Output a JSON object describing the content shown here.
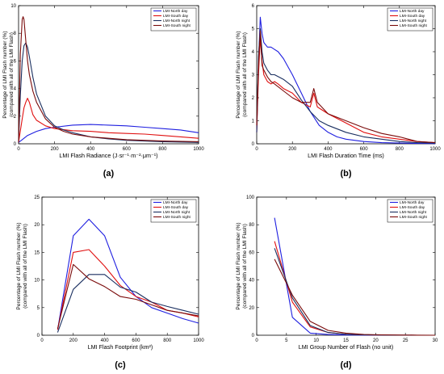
{
  "chart_data": [
    {
      "type": "line",
      "panel_label": "(a)",
      "xlabel": "LMI Flash Radiance (J·sr⁻¹·m⁻²·μm⁻¹)",
      "ylabel": [
        "Percentage of LMI Flash number (%)",
        "(compared with all of the LMI Flash)"
      ],
      "xlim": [
        0,
        1000
      ],
      "ylim": [
        0,
        10
      ],
      "xticks": [
        0,
        200,
        400,
        600,
        800,
        1000
      ],
      "yticks": [
        0,
        2,
        4,
        6,
        8,
        10
      ],
      "legend": "top-right",
      "series": [
        {
          "name": "LMI-North day",
          "color": "#1f1fe0",
          "x": [
            0,
            20,
            50,
            100,
            150,
            200,
            300,
            400,
            500,
            600,
            700,
            800,
            900,
            1000
          ],
          "y": [
            0.1,
            0.3,
            0.6,
            0.9,
            1.1,
            1.2,
            1.35,
            1.4,
            1.35,
            1.3,
            1.2,
            1.1,
            1.0,
            0.8
          ]
        },
        {
          "name": "LMI-South day",
          "color": "#e01010",
          "x": [
            0,
            20,
            30,
            40,
            50,
            60,
            80,
            100,
            150,
            200,
            300,
            400,
            500,
            600,
            700,
            800,
            900,
            1000
          ],
          "y": [
            0.1,
            1.8,
            2.6,
            3.0,
            3.3,
            3.0,
            2.1,
            1.7,
            1.3,
            1.1,
            0.95,
            0.9,
            0.8,
            0.75,
            0.7,
            0.6,
            0.5,
            0.4
          ]
        },
        {
          "name": "LMI-North night",
          "color": "#1a2f60",
          "x": [
            0,
            10,
            20,
            30,
            40,
            50,
            60,
            80,
            100,
            150,
            200,
            250,
            300,
            400,
            500,
            600,
            800,
            1000
          ],
          "y": [
            0.1,
            3.5,
            6.0,
            7.1,
            7.3,
            7.0,
            6.3,
            4.8,
            3.6,
            2.0,
            1.3,
            1.0,
            0.8,
            0.5,
            0.35,
            0.25,
            0.15,
            0.1
          ]
        },
        {
          "name": "LMI-South night",
          "color": "#7a0a0a",
          "x": [
            0,
            10,
            20,
            25,
            30,
            40,
            50,
            60,
            80,
            100,
            150,
            200,
            250,
            300,
            400,
            500,
            600,
            800,
            1000
          ],
          "y": [
            0.1,
            6.5,
            9.0,
            9.2,
            9.0,
            7.5,
            6.0,
            5.0,
            3.8,
            3.0,
            1.8,
            1.2,
            0.9,
            0.7,
            0.5,
            0.4,
            0.3,
            0.2,
            0.15
          ]
        }
      ]
    },
    {
      "type": "line",
      "panel_label": "(b)",
      "xlabel": "LMI Flash Duration Time (ms)",
      "ylabel": [
        "Percentage of LMI Flash number (%)",
        "(compared with all of the LMI Flash)"
      ],
      "xlim": [
        0,
        1000
      ],
      "ylim": [
        0,
        6
      ],
      "xticks": [
        0,
        200,
        400,
        600,
        800,
        1000
      ],
      "yticks": [
        0,
        1,
        2,
        3,
        4,
        5,
        6
      ],
      "legend": "top-right",
      "series": [
        {
          "name": "LMI-North day",
          "color": "#1f1fe0",
          "x": [
            0,
            10,
            20,
            30,
            40,
            60,
            80,
            100,
            120,
            150,
            200,
            250,
            300,
            350,
            400,
            450,
            500,
            600,
            700,
            800,
            900,
            1000
          ],
          "y": [
            0.5,
            3.5,
            5.5,
            4.8,
            4.4,
            4.2,
            4.2,
            4.1,
            4.0,
            3.7,
            3.0,
            2.2,
            1.4,
            0.8,
            0.5,
            0.3,
            0.2,
            0.1,
            0.05,
            0.03,
            0.02,
            0.01
          ]
        },
        {
          "name": "LMI-South day",
          "color": "#e01010",
          "x": [
            0,
            10,
            20,
            30,
            40,
            60,
            80,
            100,
            120,
            150,
            200,
            250,
            300,
            320,
            340,
            400,
            500,
            600,
            700,
            800,
            900,
            1000
          ],
          "y": [
            0.5,
            3.0,
            4.6,
            3.6,
            3.0,
            2.7,
            2.6,
            2.7,
            2.6,
            2.4,
            2.2,
            1.8,
            1.6,
            2.2,
            1.6,
            1.3,
            0.9,
            0.5,
            0.3,
            0.2,
            0.1,
            0.05
          ]
        },
        {
          "name": "LMI-North night",
          "color": "#1a2f60",
          "x": [
            0,
            10,
            20,
            30,
            40,
            60,
            80,
            100,
            150,
            200,
            250,
            300,
            350,
            400,
            500,
            600,
            700,
            800,
            900,
            1000
          ],
          "y": [
            0.5,
            3.8,
            5.0,
            4.0,
            3.5,
            3.2,
            3.0,
            3.0,
            2.8,
            2.5,
            1.9,
            1.4,
            1.0,
            0.8,
            0.5,
            0.3,
            0.2,
            0.1,
            0.05,
            0.03
          ]
        },
        {
          "name": "LMI-South night",
          "color": "#7a0a0a",
          "x": [
            0,
            10,
            20,
            30,
            40,
            60,
            80,
            100,
            150,
            200,
            250,
            300,
            320,
            340,
            400,
            500,
            600,
            700,
            800,
            850,
            900,
            1000
          ],
          "y": [
            0.8,
            3.4,
            4.9,
            3.4,
            3.2,
            2.9,
            2.7,
            2.6,
            2.3,
            2.0,
            1.8,
            1.8,
            2.4,
            1.8,
            1.3,
            1.0,
            0.7,
            0.45,
            0.3,
            0.2,
            0.1,
            0.05
          ]
        }
      ]
    },
    {
      "type": "line",
      "panel_label": "(c)",
      "xlabel": "LMI Flash Footprint (km²)",
      "ylabel": [
        "Percentage of LMI Flash number (%)",
        "(compared with all of the LMI Flash)"
      ],
      "xlim": [
        0,
        1000
      ],
      "ylim": [
        0,
        25
      ],
      "xticks": [
        0,
        200,
        400,
        600,
        800,
        1000
      ],
      "yticks": [
        0,
        5,
        10,
        15,
        20,
        25
      ],
      "legend": "top-right",
      "series": [
        {
          "name": "LMI-North day",
          "color": "#1f1fe0",
          "x": [
            100,
            200,
            300,
            400,
            500,
            600,
            700,
            800,
            900,
            1000
          ],
          "y": [
            1.0,
            18.0,
            21.0,
            18.0,
            10.5,
            7.0,
            5.0,
            4.0,
            3.0,
            2.2
          ]
        },
        {
          "name": "LMI-South day",
          "color": "#e01010",
          "x": [
            100,
            200,
            300,
            400,
            500,
            600,
            700,
            800,
            900,
            1000
          ],
          "y": [
            1.0,
            15.0,
            15.5,
            12.5,
            9.0,
            7.0,
            6.0,
            4.5,
            4.0,
            3.3
          ]
        },
        {
          "name": "LMI-North night",
          "color": "#1a2f60",
          "x": [
            100,
            200,
            300,
            400,
            500,
            600,
            700,
            800,
            900,
            1000
          ],
          "y": [
            0.5,
            8.3,
            11.0,
            11.0,
            8.7,
            7.8,
            6.0,
            5.2,
            4.5,
            3.8
          ]
        },
        {
          "name": "LMI-South night",
          "color": "#7a0a0a",
          "x": [
            100,
            200,
            300,
            400,
            500,
            600,
            700,
            800,
            900,
            1000
          ],
          "y": [
            1.2,
            12.8,
            10.2,
            8.8,
            7.0,
            6.5,
            5.5,
            4.5,
            4.0,
            3.5
          ]
        }
      ]
    },
    {
      "type": "line",
      "panel_label": "(d)",
      "xlabel": "LMI Group Number of Flash (no unit)",
      "ylabel": [
        "Percentage of LMI Flash number (%)",
        "(compared with all of the LMI Flash)"
      ],
      "xlim": [
        0,
        30
      ],
      "ylim": [
        0,
        100
      ],
      "xticks": [
        0,
        5,
        10,
        15,
        20,
        25,
        30
      ],
      "yticks": [
        0,
        20,
        40,
        60,
        80,
        100
      ],
      "legend": "top-right",
      "series": [
        {
          "name": "LMI-North day",
          "color": "#1f1fe0",
          "x": [
            3,
            6,
            9,
            12,
            15,
            18,
            21,
            24,
            27,
            30
          ],
          "y": [
            85,
            13,
            1.5,
            0.5,
            0.2,
            0.1,
            0.05,
            0.02,
            0.01,
            0.0
          ]
        },
        {
          "name": "LMI-South day",
          "color": "#e01010",
          "x": [
            3,
            6,
            9,
            12,
            15,
            18,
            21,
            24,
            27,
            30
          ],
          "y": [
            68,
            24,
            6,
            2,
            0.7,
            0.3,
            0.1,
            0.05,
            0.02,
            0.0
          ]
        },
        {
          "name": "LMI-North night",
          "color": "#1a2f60",
          "x": [
            3,
            6,
            9,
            12,
            15,
            18,
            21,
            24,
            27,
            30
          ],
          "y": [
            63,
            27,
            7,
            2,
            0.7,
            0.3,
            0.1,
            0.05,
            0.02,
            0.0
          ]
        },
        {
          "name": "LMI-South night",
          "color": "#7a0a0a",
          "x": [
            3,
            6,
            9,
            12,
            15,
            18,
            21,
            24,
            27,
            30
          ],
          "y": [
            55,
            29,
            10,
            3.5,
            1.5,
            0.6,
            0.3,
            0.1,
            0.05,
            0.0
          ]
        }
      ]
    }
  ]
}
